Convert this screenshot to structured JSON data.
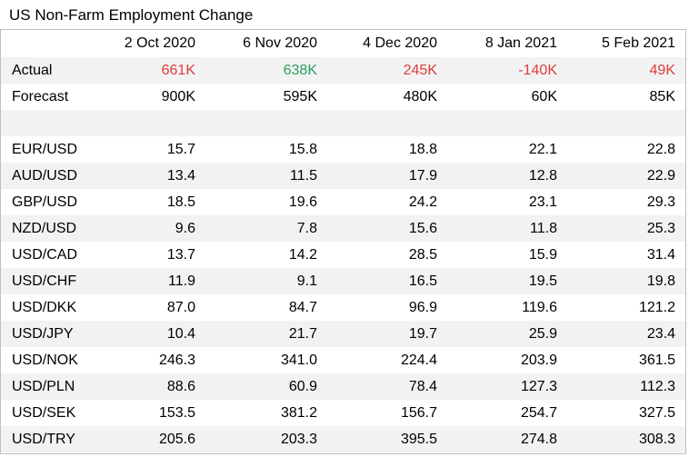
{
  "chart_data": {
    "type": "table",
    "title": "US Non-Farm Employment Change",
    "columns": [
      "2 Oct 2020",
      "6 Nov 2020",
      "4 Dec 2020",
      "8 Jan 2021",
      "5 Feb 2021"
    ],
    "actual": {
      "label": "Actual",
      "values": [
        "661K",
        "638K",
        "245K",
        "-140K",
        "49K"
      ],
      "colors": [
        "#e03c3c",
        "#2e9e60",
        "#e03c3c",
        "#e03c3c",
        "#e03c3c"
      ]
    },
    "forecast": {
      "label": "Forecast",
      "values": [
        "900K",
        "595K",
        "480K",
        "60K",
        "85K"
      ]
    },
    "rows": [
      {
        "label": "EUR/USD",
        "values": [
          "15.7",
          "15.8",
          "18.8",
          "22.1",
          "22.8"
        ]
      },
      {
        "label": "AUD/USD",
        "values": [
          "13.4",
          "11.5",
          "17.9",
          "12.8",
          "22.9"
        ]
      },
      {
        "label": "GBP/USD",
        "values": [
          "18.5",
          "19.6",
          "24.2",
          "23.1",
          "29.3"
        ]
      },
      {
        "label": "NZD/USD",
        "values": [
          "9.6",
          "7.8",
          "15.6",
          "11.8",
          "25.3"
        ]
      },
      {
        "label": "USD/CAD",
        "values": [
          "13.7",
          "14.2",
          "28.5",
          "15.9",
          "31.4"
        ]
      },
      {
        "label": "USD/CHF",
        "values": [
          "11.9",
          "9.1",
          "16.5",
          "19.5",
          "19.8"
        ]
      },
      {
        "label": "USD/DKK",
        "values": [
          "87.0",
          "84.7",
          "96.9",
          "119.6",
          "121.2"
        ]
      },
      {
        "label": "USD/JPY",
        "values": [
          "10.4",
          "21.7",
          "19.7",
          "25.9",
          "23.4"
        ]
      },
      {
        "label": "USD/NOK",
        "values": [
          "246.3",
          "341.0",
          "224.4",
          "203.9",
          "361.5"
        ]
      },
      {
        "label": "USD/PLN",
        "values": [
          "88.6",
          "60.9",
          "78.4",
          "127.3",
          "112.3"
        ]
      },
      {
        "label": "USD/SEK",
        "values": [
          "153.5",
          "381.2",
          "156.7",
          "254.7",
          "327.5"
        ]
      },
      {
        "label": "USD/TRY",
        "values": [
          "205.6",
          "203.3",
          "395.5",
          "274.8",
          "308.3"
        ]
      }
    ]
  }
}
